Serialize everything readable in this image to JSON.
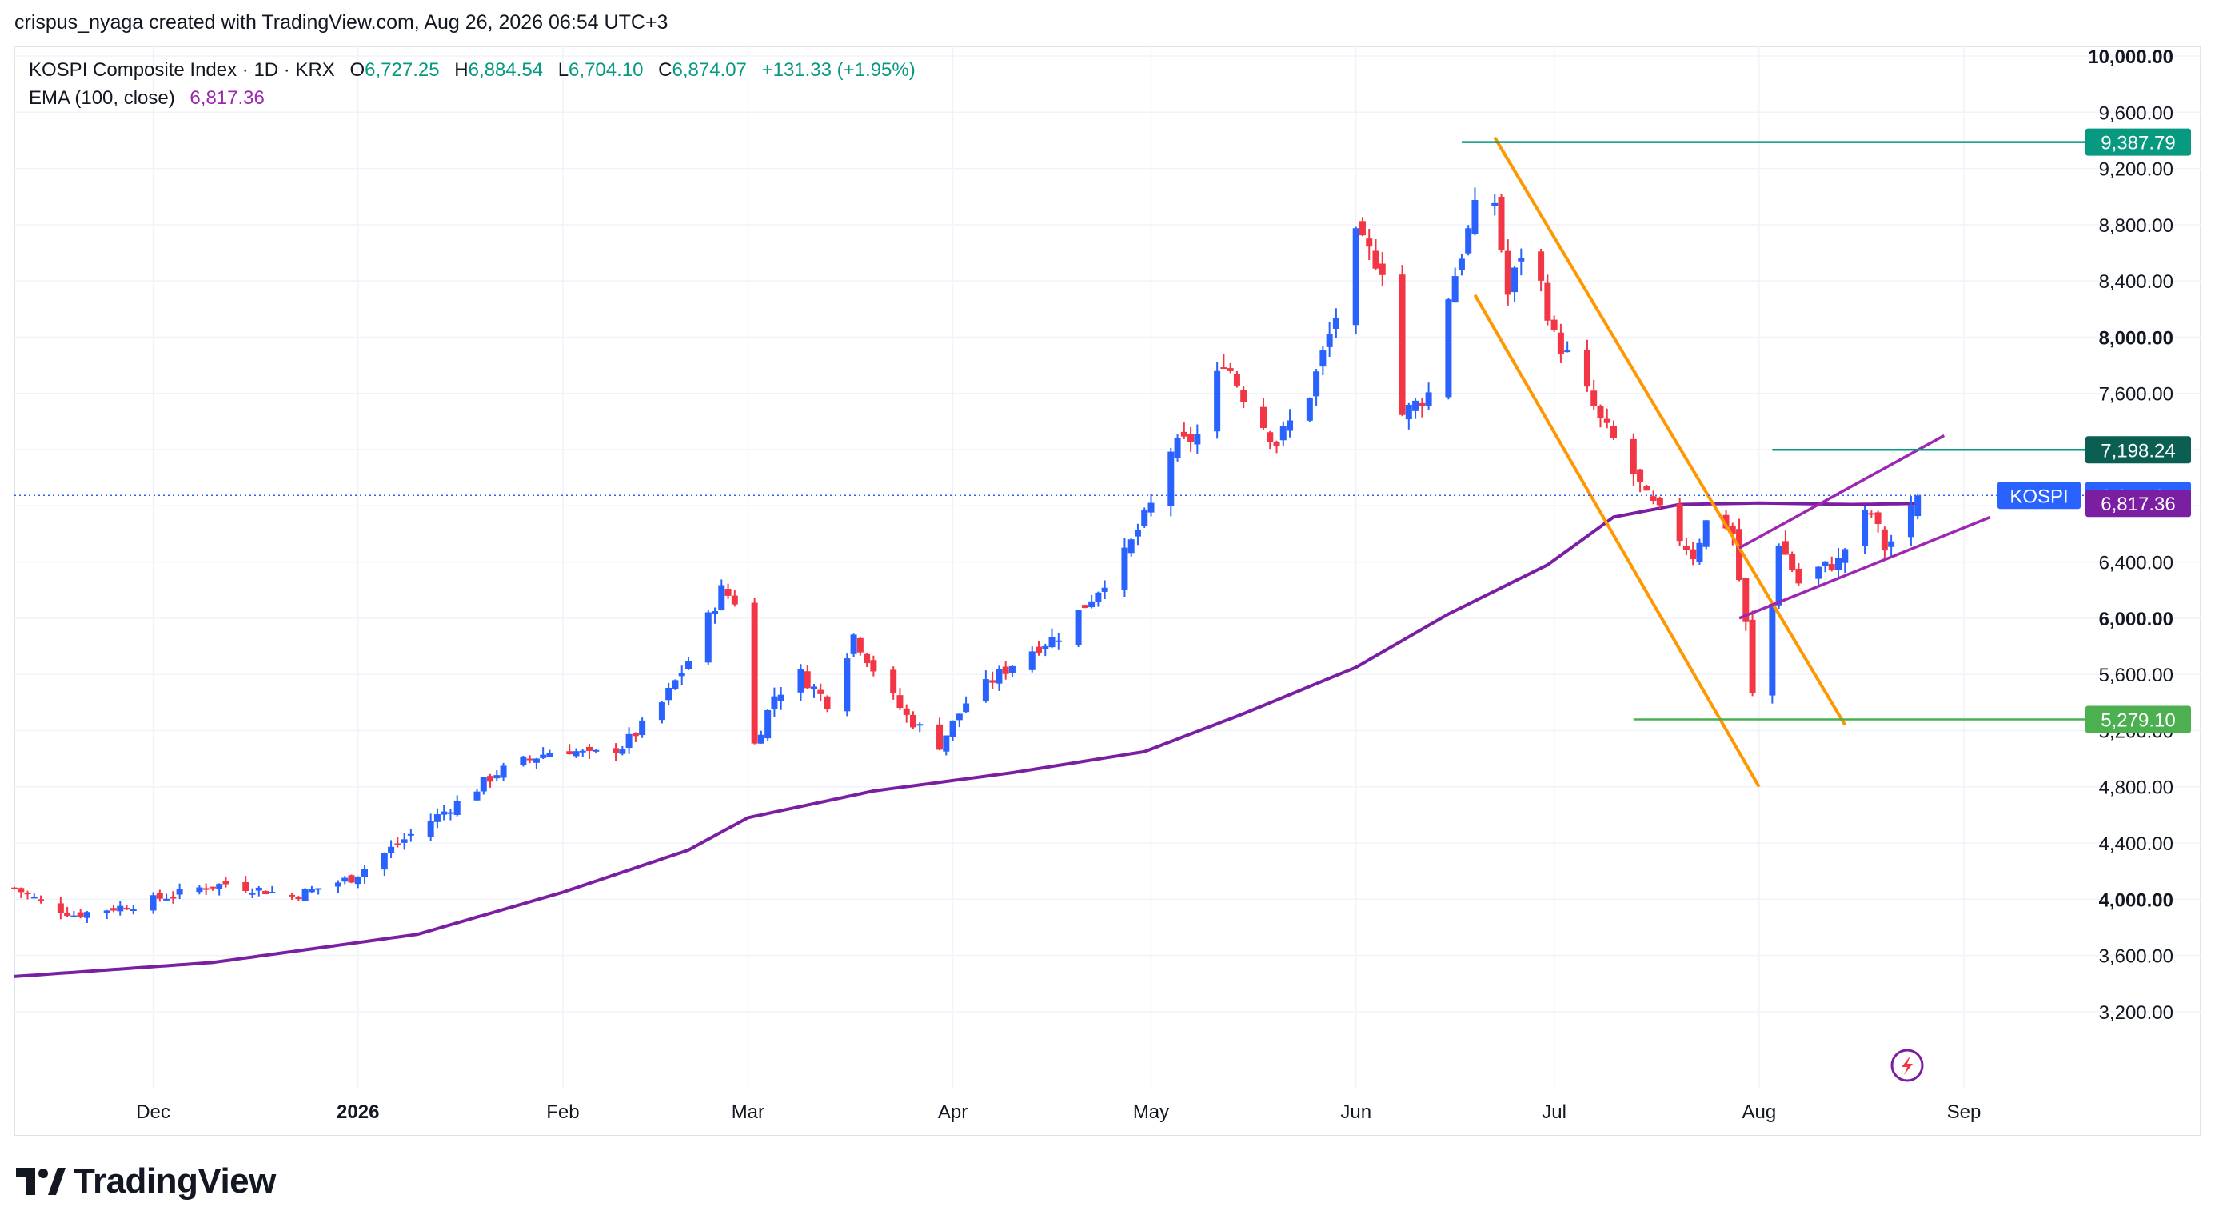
{
  "header": {
    "author_line": "crispus_nyaga created with TradingView.com, Aug 26, 2026 06:54 UTC+3"
  },
  "legend": {
    "symbol": "KOSPI Composite Index · 1D · KRX",
    "open_label": "O",
    "open": "6,727.25",
    "high_label": "H",
    "high": "6,884.54",
    "low_label": "L",
    "low": "6,704.10",
    "close_label": "C",
    "close": "6,874.07",
    "change": "+131.33 (+1.95%)",
    "ema_label": "EMA (100, close)",
    "ema_value": "6,817.36"
  },
  "colors": {
    "up": "#2962ff",
    "down": "#f23645",
    "ema": "#7b1fa2",
    "channel": "#ff9800",
    "wedge": "#9c27b0",
    "hline_teal": "#089981",
    "hline_green": "#4caf50",
    "grid": "#f0f3fa",
    "axis_text": "#131722"
  },
  "footer": {
    "logo_text": "TradingView",
    "logo_icon": "tradingview-logo-icon"
  },
  "chart_data": {
    "type": "candlestick",
    "y_range": [
      3000,
      10000
    ],
    "y_ticks": [
      "10,000.00",
      "9,600.00",
      "9,200.00",
      "8,800.00",
      "8,400.00",
      "8,000.00",
      "7,600.00",
      "7,200.00",
      "6,800.00",
      "6,400.00",
      "6,000.00",
      "5,600.00",
      "5,200.00",
      "4,800.00",
      "4,400.00",
      "4,000.00",
      "3,600.00",
      "3,200.00"
    ],
    "x_labels": [
      {
        "label": "Dec",
        "date": "2025-12-01",
        "bold": false
      },
      {
        "label": "2026",
        "date": "2026-01-01",
        "bold": true
      },
      {
        "label": "Feb",
        "date": "2026-02-01",
        "bold": false
      },
      {
        "label": "Mar",
        "date": "2026-03-01",
        "bold": false
      },
      {
        "label": "Apr",
        "date": "2026-04-01",
        "bold": false
      },
      {
        "label": "May",
        "date": "2026-05-01",
        "bold": false
      },
      {
        "label": "Jun",
        "date": "2026-06-01",
        "bold": false
      },
      {
        "label": "Jul",
        "date": "2026-07-01",
        "bold": false
      },
      {
        "label": "Aug",
        "date": "2026-08-01",
        "bold": false
      },
      {
        "label": "Sep",
        "date": "2026-09-01",
        "bold": false
      }
    ],
    "x_start_date": "2025-11-10",
    "x_end_date": "2026-09-16",
    "close_anchors": [
      [
        "2025-11-10",
        4080
      ],
      [
        "2025-11-14",
        3980
      ],
      [
        "2025-11-19",
        3890
      ],
      [
        "2025-11-24",
        3930
      ],
      [
        "2025-11-28",
        3960
      ],
      [
        "2025-12-03",
        4020
      ],
      [
        "2025-12-08",
        4080
      ],
      [
        "2025-12-12",
        4110
      ],
      [
        "2025-12-17",
        4070
      ],
      [
        "2025-12-22",
        4020
      ],
      [
        "2025-12-26",
        4080
      ],
      [
        "2025-12-31",
        4150
      ],
      [
        "2026-01-06",
        4360
      ],
      [
        "2026-01-12",
        4560
      ],
      [
        "2026-01-17",
        4720
      ],
      [
        "2026-01-22",
        4900
      ],
      [
        "2026-01-27",
        5000
      ],
      [
        "2026-02-01",
        5080
      ],
      [
        "2026-02-05",
        5020
      ],
      [
        "2026-02-10",
        5090
      ],
      [
        "2026-02-15",
        5320
      ],
      [
        "2026-02-20",
        5700
      ],
      [
        "2026-02-25",
        6200
      ],
      [
        "2026-02-28",
        6090
      ],
      [
        "2026-03-02",
        5100
      ],
      [
        "2026-03-05",
        5450
      ],
      [
        "2026-03-09",
        5600
      ],
      [
        "2026-03-13",
        5400
      ],
      [
        "2026-03-17",
        5880
      ],
      [
        "2026-03-21",
        5560
      ],
      [
        "2026-03-25",
        5300
      ],
      [
        "2026-03-30",
        5100
      ],
      [
        "2026-04-03",
        5400
      ],
      [
        "2026-04-07",
        5560
      ],
      [
        "2026-04-12",
        5750
      ],
      [
        "2026-04-17",
        5880
      ],
      [
        "2026-04-22",
        6150
      ],
      [
        "2026-04-27",
        6450
      ],
      [
        "2026-05-01",
        6800
      ],
      [
        "2026-05-04",
        7200
      ],
      [
        "2026-05-08",
        7300
      ],
      [
        "2026-05-12",
        7850
      ],
      [
        "2026-05-16",
        7500
      ],
      [
        "2026-05-20",
        7250
      ],
      [
        "2026-05-25",
        7600
      ],
      [
        "2026-05-29",
        8150
      ],
      [
        "2026-06-01",
        8700
      ],
      [
        "2026-06-05",
        8500
      ],
      [
        "2026-06-08",
        7450
      ],
      [
        "2026-06-12",
        7600
      ],
      [
        "2026-06-15",
        8300
      ],
      [
        "2026-06-19",
        8900
      ],
      [
        "2026-06-21",
        9300
      ],
      [
        "2026-06-24",
        8300
      ],
      [
        "2026-06-27",
        8750
      ],
      [
        "2026-07-01",
        8000
      ],
      [
        "2026-07-04",
        7800
      ],
      [
        "2026-07-08",
        7400
      ],
      [
        "2026-07-11",
        7200
      ],
      [
        "2026-07-15",
        6850
      ],
      [
        "2026-07-18",
        6700
      ],
      [
        "2026-07-22",
        6450
      ],
      [
        "2026-07-25",
        6800
      ],
      [
        "2026-07-28",
        6600
      ],
      [
        "2026-07-30",
        5950
      ],
      [
        "2026-07-31",
        5450
      ],
      [
        "2026-08-02",
        5650
      ],
      [
        "2026-08-04",
        6550
      ],
      [
        "2026-08-07",
        6250
      ],
      [
        "2026-08-10",
        6350
      ],
      [
        "2026-08-13",
        6400
      ],
      [
        "2026-08-16",
        6700
      ],
      [
        "2026-08-18",
        6750
      ],
      [
        "2026-08-20",
        6500
      ],
      [
        "2026-08-23",
        6650
      ],
      [
        "2026-08-25",
        6874
      ]
    ],
    "ema_anchors": [
      [
        "2025-11-10",
        3450
      ],
      [
        "2025-12-10",
        3550
      ],
      [
        "2026-01-10",
        3750
      ],
      [
        "2026-02-01",
        4050
      ],
      [
        "2026-02-20",
        4350
      ],
      [
        "2026-03-01",
        4580
      ],
      [
        "2026-03-20",
        4770
      ],
      [
        "2026-04-10",
        4900
      ],
      [
        "2026-04-30",
        5050
      ],
      [
        "2026-05-15",
        5320
      ],
      [
        "2026-06-01",
        5650
      ],
      [
        "2026-06-15",
        6030
      ],
      [
        "2026-06-30",
        6380
      ],
      [
        "2026-07-10",
        6720
      ],
      [
        "2026-07-20",
        6810
      ],
      [
        "2026-08-01",
        6820
      ],
      [
        "2026-08-15",
        6810
      ],
      [
        "2026-08-25",
        6817
      ]
    ],
    "last_candle": {
      "date": "2026-08-25",
      "open": 6727.25,
      "high": 6884.54,
      "low": 6704.1,
      "close": 6874.07
    },
    "horizontal_lines": [
      {
        "price": 9387.79,
        "label": "9,387.79",
        "from": "2026-06-17",
        "color_key": "hline_teal"
      },
      {
        "price": 7198.24,
        "label": "7,198.24",
        "from": "2026-08-03",
        "color_key": "hline_teal"
      },
      {
        "price": 5279.1,
        "label": "5,279.10",
        "from": "2026-07-13",
        "color_key": "hline_green"
      }
    ],
    "channel_lines": [
      {
        "from": [
          "2026-06-22",
          9420
        ],
        "to": [
          "2026-08-14",
          5240
        ]
      },
      {
        "from": [
          "2026-06-19",
          8300
        ],
        "to": [
          "2026-08-01",
          4800
        ]
      }
    ],
    "wedge_lines": [
      {
        "from": [
          "2026-07-29",
          6500
        ],
        "to": [
          "2026-08-29",
          7300
        ]
      },
      {
        "from": [
          "2026-07-29",
          6000
        ],
        "to": [
          "2026-09-05",
          6720
        ]
      }
    ],
    "price_labels": [
      {
        "text": "KOSPI",
        "value": "6,874.07",
        "price": 6874.07,
        "color_key": "up"
      },
      {
        "text": "",
        "value": "6,817.36",
        "price": 6817.36,
        "color_key": "ema"
      }
    ]
  }
}
